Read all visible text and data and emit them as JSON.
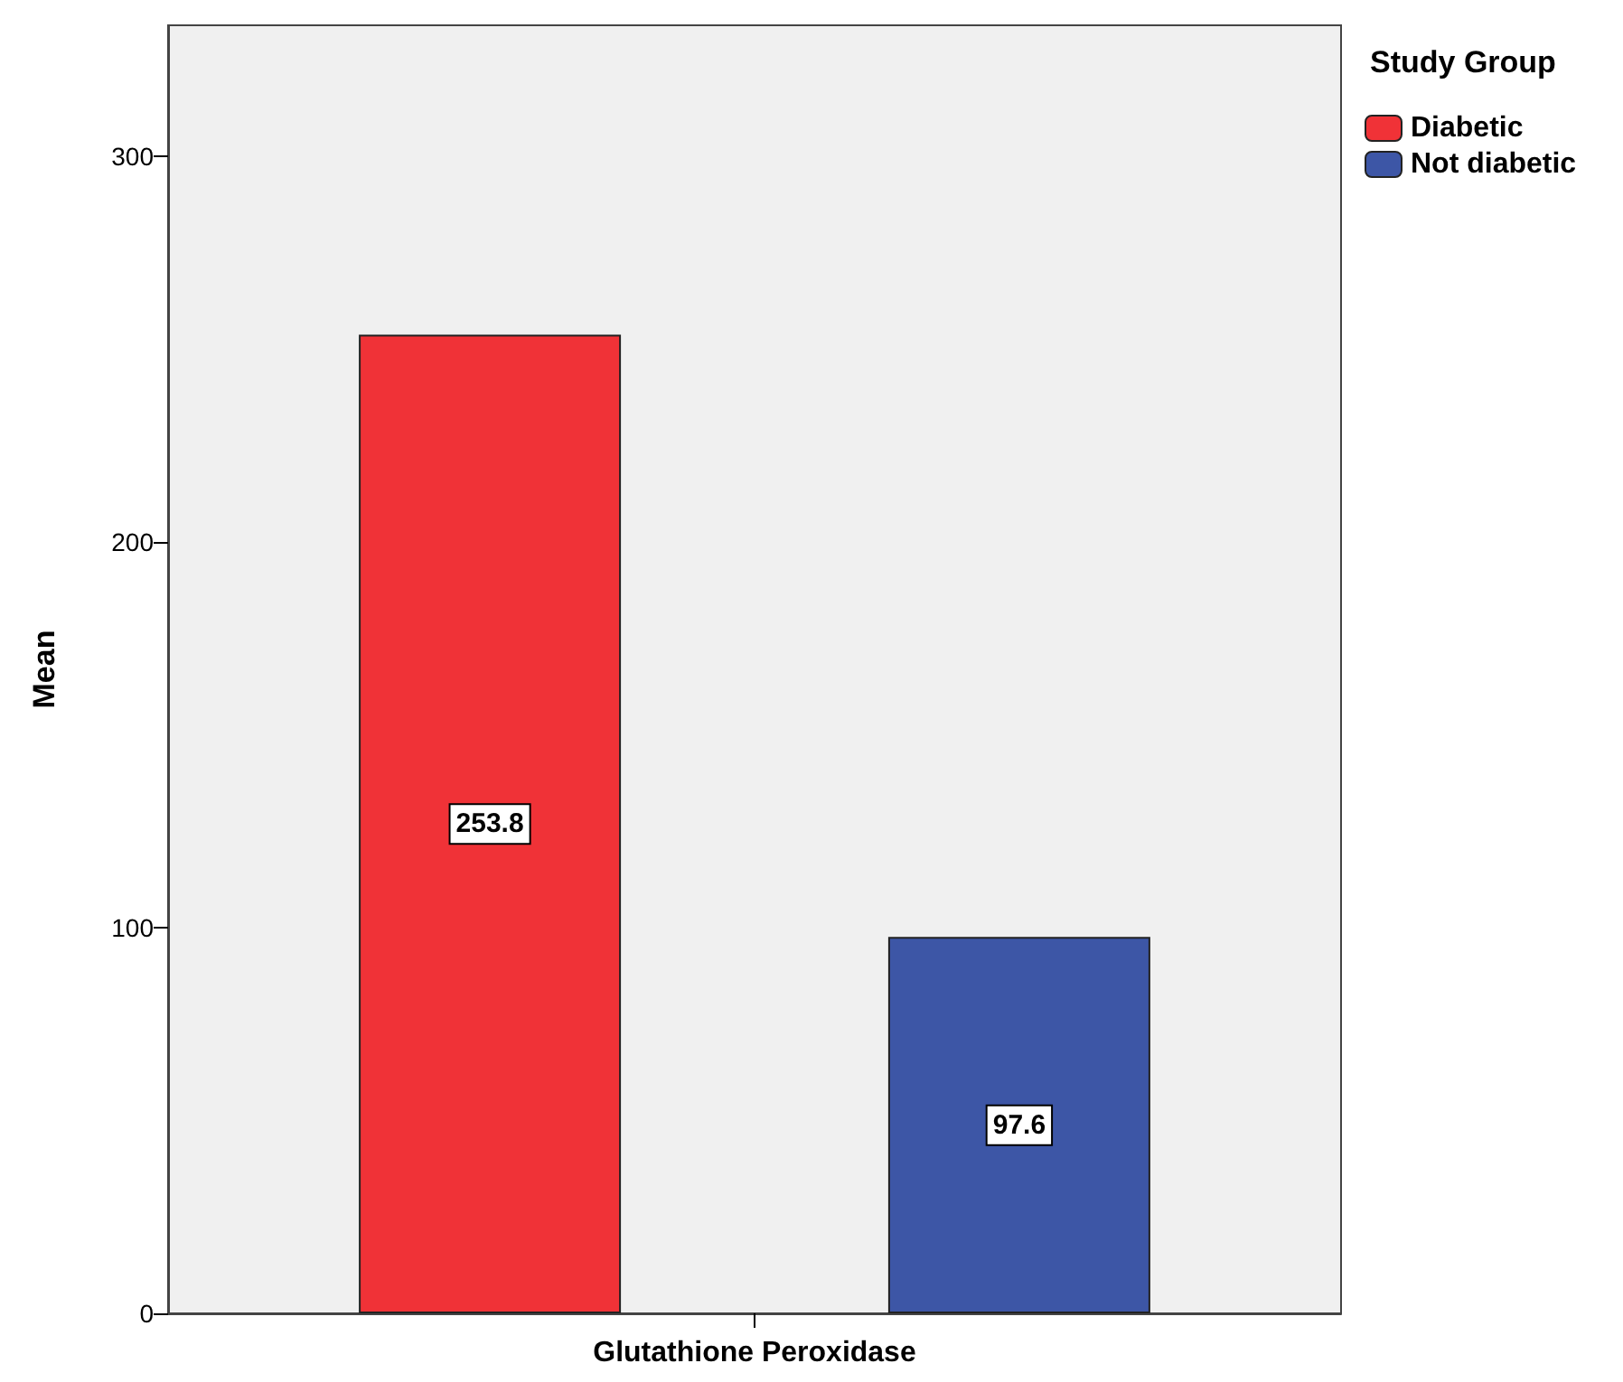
{
  "chart_data": {
    "type": "bar",
    "ylabel": "Mean",
    "legend_title": "Study Group",
    "categories": [
      "Glutathione Peroxidase"
    ],
    "series": [
      {
        "name": "Diabetic",
        "color": "#f03237",
        "values": [
          253.8
        ]
      },
      {
        "name": "Not diabetic",
        "color": "#3d56a6",
        "values": [
          97.6
        ]
      }
    ],
    "ylim": [
      0,
      334
    ],
    "yticks": [
      0,
      100,
      200,
      300
    ],
    "grid": false,
    "legend": "right",
    "data_labels": true
  }
}
